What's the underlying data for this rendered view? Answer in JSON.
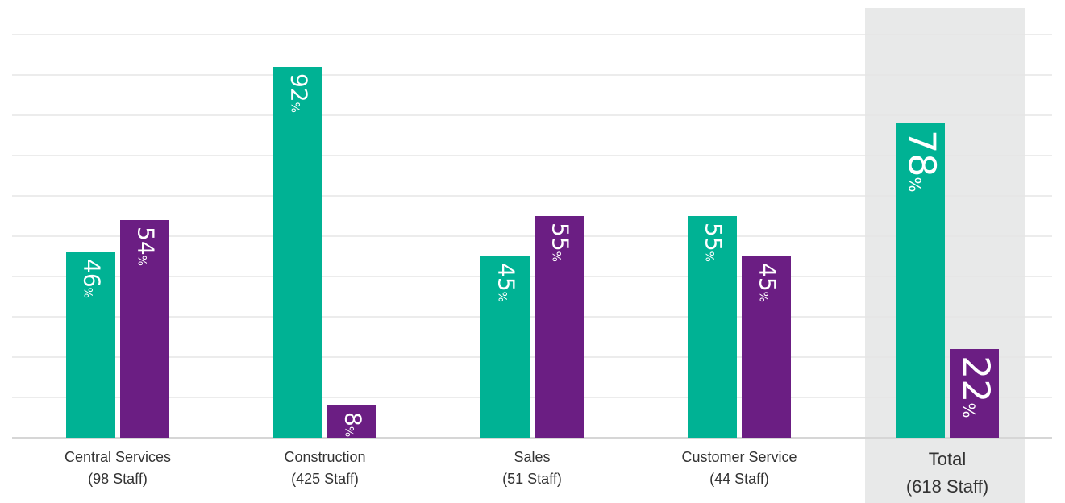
{
  "chart_data": {
    "type": "bar",
    "title": "",
    "xlabel": "",
    "ylabel": "",
    "ylim": [
      0,
      100
    ],
    "grid": true,
    "legend": "none",
    "categories": [
      {
        "line1": "Central Services",
        "line2": "(98 Staff)"
      },
      {
        "line1": "Construction",
        "line2": "(425 Staff)"
      },
      {
        "line1": "Sales",
        "line2": "(51 Staff)"
      },
      {
        "line1": "Customer Service",
        "line2": "(44 Staff)"
      },
      {
        "line1": "Total",
        "line2": "(618 Staff)"
      }
    ],
    "highlighted_category": "Total",
    "series": [
      {
        "color": "#00b294",
        "values": [
          46,
          92,
          45,
          55,
          78
        ]
      },
      {
        "color": "#6b1e83",
        "values": [
          54,
          8,
          55,
          45,
          22
        ]
      }
    ],
    "value_suffix": "%"
  },
  "colors": {
    "highlight_band": "#e8e9e9",
    "gridline": "#e6e6e6",
    "baseline": "#d6d6d6"
  }
}
